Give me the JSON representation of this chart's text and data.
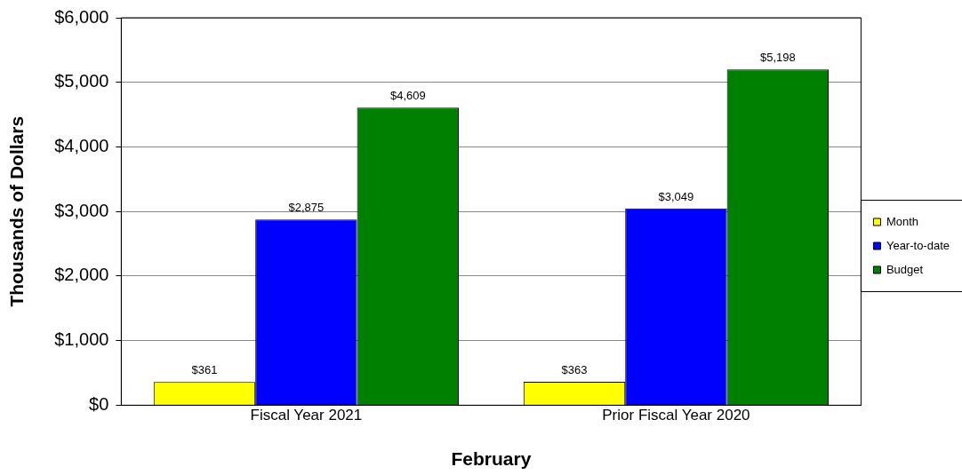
{
  "chart_data": {
    "type": "bar",
    "categories": [
      "Fiscal Year 2021",
      "Prior Fiscal Year 2020"
    ],
    "series": [
      {
        "name": "Month",
        "color": "#ffff00",
        "values": [
          361,
          363
        ]
      },
      {
        "name": "Year-to-date",
        "color": "#0000ff",
        "values": [
          2875,
          3049
        ]
      },
      {
        "name": "Budget",
        "color": "#008000",
        "values": [
          4609,
          5198
        ]
      }
    ],
    "xlabel": "February",
    "ylabel": "Thousands of Dollars",
    "ylim": [
      0,
      6000
    ],
    "yticks": [
      {
        "value": 0,
        "label": "$0"
      },
      {
        "value": 1000,
        "label": "$1,000"
      },
      {
        "value": 2000,
        "label": "$2,000"
      },
      {
        "value": 3000,
        "label": "$3,000"
      },
      {
        "value": 4000,
        "label": "$4,000"
      },
      {
        "value": 5000,
        "label": "$5,000"
      },
      {
        "value": 6000,
        "label": "$6,000"
      }
    ],
    "value_labels": [
      [
        "$361",
        "$363"
      ],
      [
        "$2,875",
        "$3,049"
      ],
      [
        "$4,609",
        "$5,198"
      ]
    ],
    "grid": "y",
    "legend": "right"
  }
}
